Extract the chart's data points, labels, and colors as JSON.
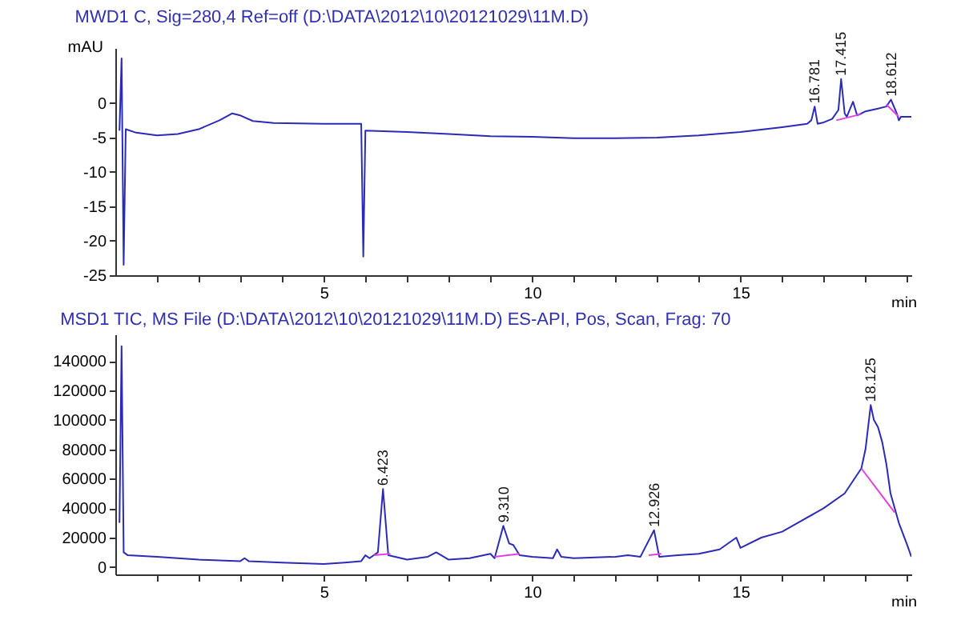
{
  "chart_data": [
    {
      "type": "line",
      "title": "MWD1 C, Sig=280,4 Ref=off (D:\\DATA\\2012\\10\\20121029\\11M.D)",
      "xlabel": "min",
      "ylabel": "mAU",
      "xlim": [
        0,
        19.1
      ],
      "ylim": [
        -25,
        8
      ],
      "xticks": [
        {
          "value": 1,
          "label": null
        },
        {
          "value": 2,
          "label": null
        },
        {
          "value": 3,
          "label": null
        },
        {
          "value": 4,
          "label": null
        },
        5,
        {
          "value": 6,
          "label": null
        },
        {
          "value": 7,
          "label": null
        },
        {
          "value": 8,
          "label": null
        },
        {
          "value": 9,
          "label": null
        },
        10,
        {
          "value": 11,
          "label": null
        },
        {
          "value": 12,
          "label": null
        },
        {
          "value": 13,
          "label": null
        },
        {
          "value": 14,
          "label": null
        },
        15,
        {
          "value": 16,
          "label": null
        },
        {
          "value": 17,
          "label": null
        },
        {
          "value": 18,
          "label": null
        },
        {
          "value": 19,
          "label": null
        }
      ],
      "yticks": [
        -25,
        -20,
        -15,
        -10,
        -5,
        0
      ],
      "grid": false,
      "marker": "none",
      "line_style": "solid",
      "series": [
        {
          "color": "#2b2bb8",
          "x": [
            0.1,
            0.15,
            0.2,
            0.25,
            0.5,
            1,
            1.5,
            2,
            2.5,
            2.8,
            3.0,
            3.3,
            3.8,
            5,
            5.9,
            5.95,
            6.0,
            7,
            8,
            9,
            10,
            11,
            12,
            13,
            14,
            15,
            16,
            16.6,
            16.7,
            16.78,
            16.85,
            17.0,
            17.2,
            17.35,
            17.415,
            17.5,
            17.55,
            17.7,
            17.8,
            18,
            18.3,
            18.5,
            18.612,
            18.75,
            18.8,
            18.85,
            19.1
          ],
          "values": [
            -4,
            6.5,
            -23.5,
            -3.8,
            -4.3,
            -4.7,
            -4.5,
            -3.8,
            -2.5,
            -1.5,
            -1.8,
            -2.6,
            -2.9,
            -3,
            -3,
            -22.3,
            -4,
            -4.2,
            -4.5,
            -4.8,
            -4.9,
            -5.1,
            -5.1,
            -5,
            -4.7,
            -4.2,
            -3.5,
            -3,
            -2.5,
            -0.5,
            -3,
            -2.8,
            -2.3,
            -1,
            3.5,
            -1.5,
            -2,
            0.2,
            -1.8,
            -1.2,
            -0.8,
            -0.5,
            0.5,
            -1.5,
            -2.5,
            -2,
            -2
          ]
        },
        {
          "color": "#e040e0",
          "x": [
            17.3,
            17.9
          ],
          "values": [
            -2.5,
            -1.6
          ]
        },
        {
          "color": "#e040e0",
          "x": [
            18.5,
            18.8
          ],
          "values": [
            -0.2,
            -2
          ]
        }
      ],
      "annotations": [
        {
          "text": "16.781",
          "x": 16.781,
          "y": -0.5
        },
        {
          "text": "17.415",
          "x": 17.415,
          "y": 3.5
        },
        {
          "text": "18.612",
          "x": 18.612,
          "y": 0.5
        }
      ]
    },
    {
      "type": "line",
      "title": "MSD1 TIC, MS File (D:\\DATA\\2012\\10\\20121029\\11M.D)    ES-API, Pos, Scan, Frag: 70",
      "xlabel": "min",
      "xlim": [
        0,
        19.1
      ],
      "ylim": [
        -5000,
        158000
      ],
      "xticks": [
        {
          "value": 1,
          "label": null
        },
        {
          "value": 2,
          "label": null
        },
        {
          "value": 3,
          "label": null
        },
        {
          "value": 4,
          "label": null
        },
        5,
        {
          "value": 6,
          "label": null
        },
        {
          "value": 7,
          "label": null
        },
        {
          "value": 8,
          "label": null
        },
        {
          "value": 9,
          "label": null
        },
        10,
        {
          "value": 11,
          "label": null
        },
        {
          "value": 12,
          "label": null
        },
        {
          "value": 13,
          "label": null
        },
        {
          "value": 14,
          "label": null
        },
        15,
        {
          "value": 16,
          "label": null
        },
        {
          "value": 17,
          "label": null
        },
        {
          "value": 18,
          "label": null
        },
        {
          "value": 19,
          "label": null
        }
      ],
      "yticks": [
        0,
        20000,
        40000,
        60000,
        80000,
        100000,
        120000,
        140000
      ],
      "grid": false,
      "marker": "none",
      "line_style": "solid",
      "series": [
        {
          "color": "#2b2bb8",
          "x": [
            0.1,
            0.15,
            0.2,
            0.3,
            1,
            2,
            3,
            3.1,
            3.2,
            4,
            5,
            5.5,
            5.9,
            6.0,
            6.1,
            6.3,
            6.423,
            6.55,
            7,
            7.5,
            7.7,
            8,
            8.5,
            9,
            9.1,
            9.31,
            9.45,
            9.55,
            9.7,
            10,
            10.5,
            10.6,
            10.7,
            11,
            12,
            12.3,
            12.6,
            12.926,
            13.05,
            13.5,
            14,
            14.5,
            14.9,
            15.0,
            15.5,
            16,
            16.5,
            17,
            17.5,
            17.9,
            18.0,
            18.125,
            18.2,
            18.3,
            18.4,
            18.5,
            18.6,
            18.8,
            19.0,
            19.1
          ],
          "values": [
            30000,
            150000,
            10000,
            8000,
            7000,
            5000,
            4000,
            6000,
            4000,
            3000,
            2000,
            3000,
            4000,
            8000,
            6000,
            10000,
            53000,
            8000,
            5000,
            7000,
            10000,
            5000,
            6000,
            9000,
            6000,
            28000,
            16000,
            15000,
            8000,
            7000,
            6000,
            12000,
            7000,
            6000,
            7000,
            8000,
            7000,
            25000,
            7000,
            8000,
            9000,
            12000,
            20000,
            13000,
            20000,
            24000,
            32000,
            40000,
            50000,
            67000,
            80000,
            110000,
            100000,
            95000,
            85000,
            70000,
            50000,
            30000,
            15000,
            7000
          ]
        },
        {
          "color": "#e040e0",
          "x": [
            6.2,
            6.6
          ],
          "values": [
            8000,
            9000
          ]
        },
        {
          "color": "#e040e0",
          "x": [
            9.1,
            9.7
          ],
          "values": [
            7000,
            9000
          ]
        },
        {
          "color": "#e040e0",
          "x": [
            12.8,
            13.1
          ],
          "values": [
            8000,
            9000
          ]
        },
        {
          "color": "#e040e0",
          "x": [
            17.9,
            18.7
          ],
          "values": [
            67000,
            37000
          ]
        }
      ],
      "annotations": [
        {
          "text": "6.423",
          "x": 6.423,
          "y": 53000
        },
        {
          "text": "9.310",
          "x": 9.31,
          "y": 28000
        },
        {
          "text": "12.926",
          "x": 12.926,
          "y": 25000
        },
        {
          "text": "18.125",
          "x": 18.125,
          "y": 110000
        }
      ]
    }
  ]
}
